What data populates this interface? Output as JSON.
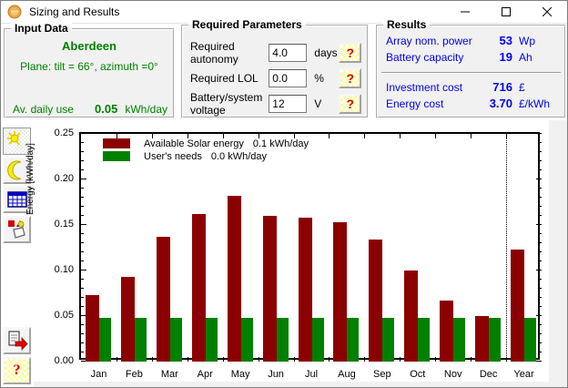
{
  "window": {
    "title": "Sizing and Results",
    "controls": [
      "minimize",
      "maximize",
      "close"
    ]
  },
  "input_data": {
    "title": "Input Data",
    "location": "Aberdeen",
    "plane": "Plane: tilt = 66°, azimuth =0°",
    "daily_use_label": "Av. daily use",
    "daily_use_value": "0.05",
    "daily_use_unit": "kWh/day"
  },
  "required_params": {
    "title": "Required Parameters",
    "help_label": "?",
    "rows": [
      {
        "label": "Required autonomy",
        "value": "4.0",
        "unit": "days"
      },
      {
        "label": "Required LOL",
        "value": "0.0",
        "unit": "%"
      },
      {
        "label": "Battery/system voltage",
        "value": "12",
        "unit": "V"
      }
    ]
  },
  "results": {
    "title": "Results",
    "rows_top": [
      {
        "label": "Array nom. power",
        "value": "53",
        "unit": "Wp"
      },
      {
        "label": "Battery capacity",
        "value": "19",
        "unit": "Ah"
      }
    ],
    "rows_bottom": [
      {
        "label": "Investment cost",
        "value": "716",
        "unit": "£"
      },
      {
        "label": "Energy cost",
        "value": "3.70",
        "unit": "£/kWh"
      }
    ]
  },
  "toolbar": {
    "icons": [
      "sun-icon",
      "moon-icon",
      "table-icon",
      "chart-copy-icon",
      "report-export-icon",
      "help-icon"
    ],
    "help_label": "?"
  },
  "chart_data": {
    "type": "bar",
    "title": "",
    "xlabel": "",
    "ylabel": "Energy  [kWh/day]",
    "ylim": [
      0,
      0.25
    ],
    "ytick_step": 0.05,
    "ytick_minor": 0.01,
    "grid": false,
    "legend_position": "top-left-inside",
    "separator_before_last_category": true,
    "categories": [
      "Jan",
      "Feb",
      "Mar",
      "Apr",
      "May",
      "Jun",
      "Jul",
      "Aug",
      "Sep",
      "Oct",
      "Nov",
      "Dec",
      "Year"
    ],
    "series": [
      {
        "name": "Available Solar energy",
        "legend_value": "0.1 kWh/day",
        "color": "#8b0000",
        "values": [
          0.073,
          0.093,
          0.137,
          0.162,
          0.182,
          0.16,
          0.158,
          0.153,
          0.134,
          0.1,
          0.067,
          0.05,
          0.123
        ]
      },
      {
        "name": "User's needs",
        "legend_value": "0.0 kWh/day",
        "color": "#008000",
        "values": [
          0.048,
          0.048,
          0.048,
          0.048,
          0.048,
          0.048,
          0.048,
          0.048,
          0.048,
          0.048,
          0.048,
          0.048,
          0.048
        ]
      }
    ]
  }
}
